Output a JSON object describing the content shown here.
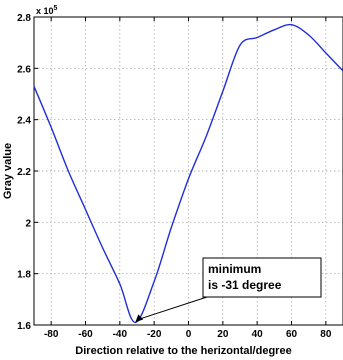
{
  "chart_data": {
    "type": "line",
    "xlabel": "Direction relative to the herizontal/degree",
    "ylabel": "Gray value",
    "y_multiplier": "x 10",
    "y_exponent": "5",
    "xlim": [
      -90,
      90
    ],
    "ylim": [
      1.6,
      2.8
    ],
    "x_ticks": [
      -80,
      -60,
      -40,
      -20,
      0,
      20,
      40,
      60,
      80
    ],
    "y_ticks": [
      1.6,
      1.8,
      2.0,
      2.2,
      2.4,
      2.6,
      2.8
    ],
    "y_tick_labels": [
      "1.6",
      "1.8",
      "2",
      "2.2",
      "2.4",
      "2.6",
      "2.8"
    ],
    "grid": true,
    "series_color": "#1f2fd8",
    "series": [
      {
        "x": [
          -90,
          -80,
          -70,
          -60,
          -50,
          -40,
          -31,
          -20,
          -10,
          0,
          10,
          20,
          30,
          40,
          50,
          60,
          70,
          80,
          90
        ],
        "y": [
          2.53,
          2.37,
          2.2,
          2.05,
          1.9,
          1.76,
          1.61,
          1.77,
          1.98,
          2.17,
          2.33,
          2.51,
          2.69,
          2.72,
          2.75,
          2.77,
          2.73,
          2.66,
          2.59
        ]
      }
    ],
    "annotation": {
      "lines": [
        "minimum",
        "is -31 degree"
      ],
      "point": [
        -31,
        1.61
      ]
    }
  }
}
